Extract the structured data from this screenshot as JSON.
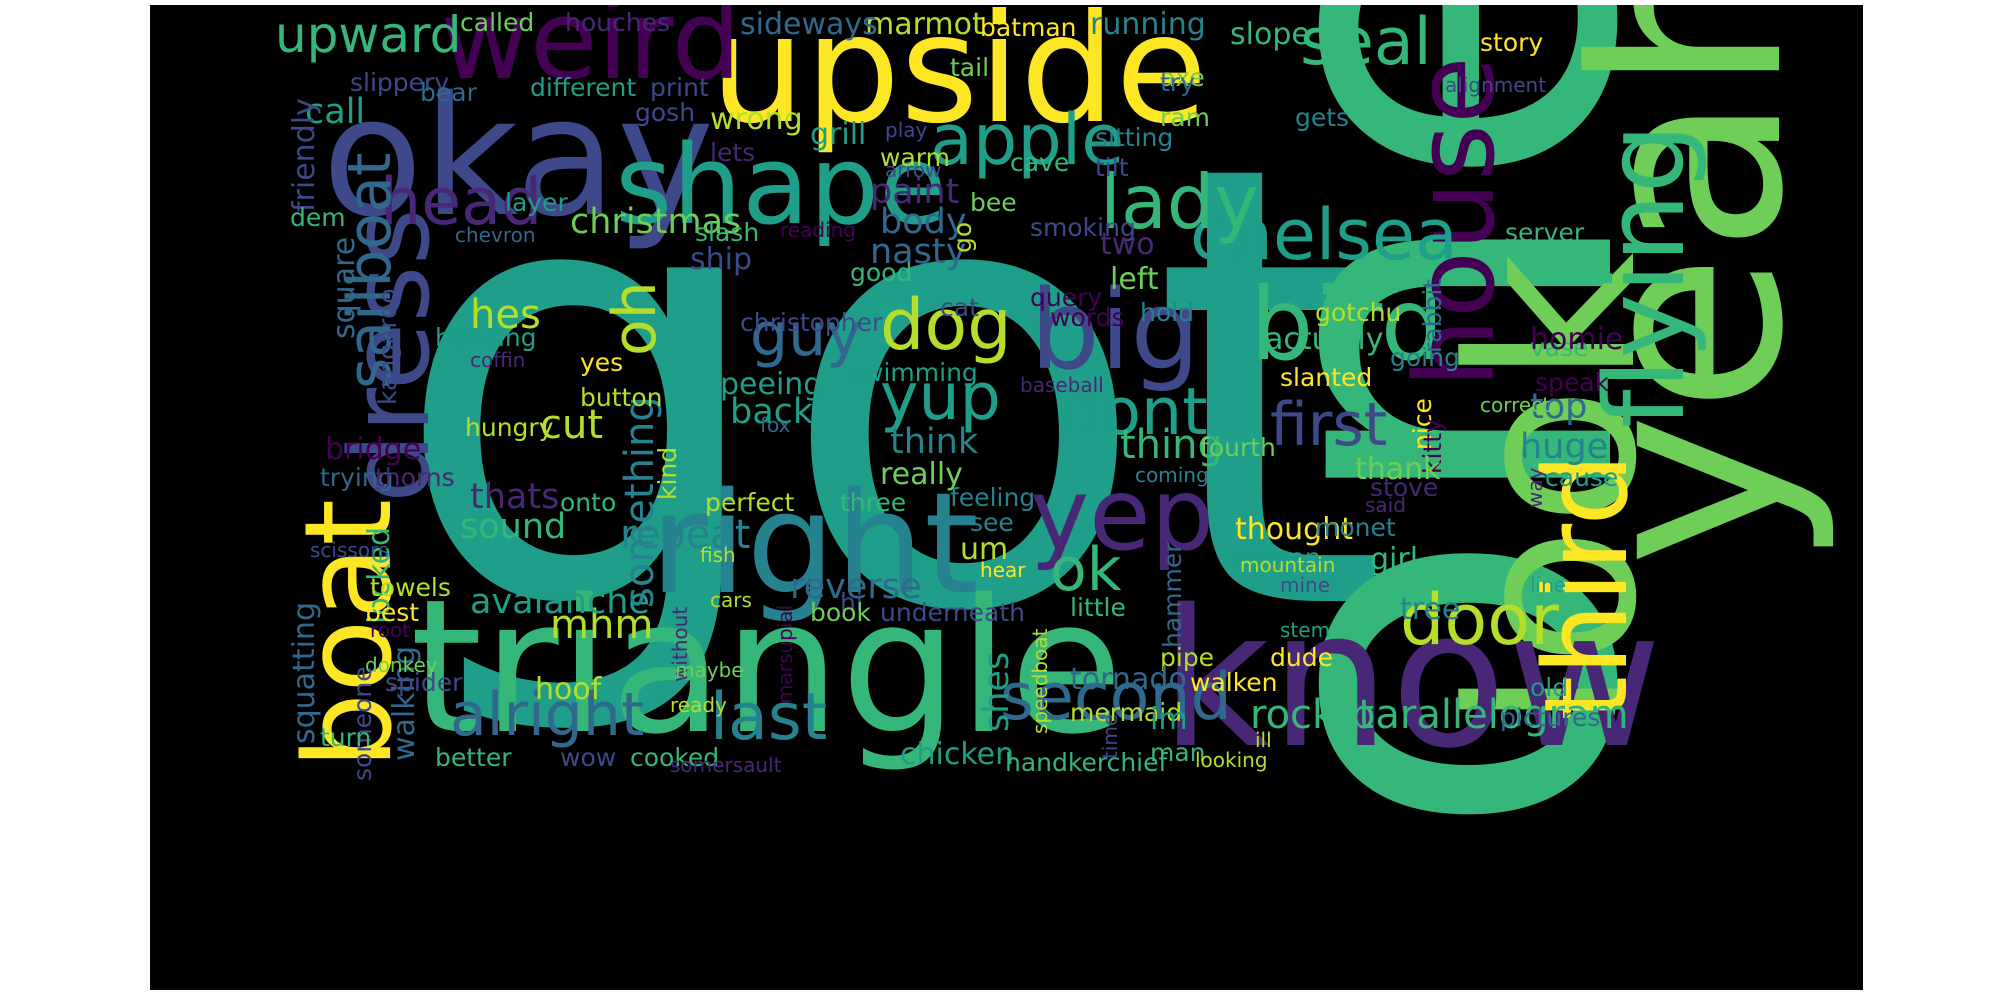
{
  "colors": {
    "background": "#000000",
    "page": "#ffffff",
    "palette": [
      "#440154",
      "#482777",
      "#3e4989",
      "#31688e",
      "#26828e",
      "#1f9e89",
      "#35b779",
      "#6ece58",
      "#b5de2b",
      "#fde725"
    ]
  },
  "words": [
    "got",
    "one",
    "triangle",
    "upside",
    "okay",
    "look",
    "yeah",
    "know",
    "right",
    "weird",
    "boat",
    "dress",
    "shape",
    "apple",
    "big",
    "bird",
    "yep",
    "house",
    "third",
    "flying",
    "chelsea",
    "lady",
    "seal",
    "head",
    "dog",
    "guy",
    "door",
    "dont",
    "yup",
    "second",
    "last",
    "alright",
    "first",
    "ok",
    "sailboat",
    "oh",
    "upward",
    "parallelogram",
    "hes",
    "mhm",
    "cut",
    "repeat",
    "avalanche",
    "rocket",
    "think",
    "thing",
    "top",
    "huge",
    "christmas",
    "body",
    "paint",
    "nasty",
    "sound",
    "thats",
    "something",
    "marmot",
    "running",
    "slope",
    "sideways",
    "houches",
    "called",
    "batman",
    "axe",
    "story",
    "alignment",
    "tail",
    "try",
    "ram",
    "print",
    "different",
    "slippery",
    "bear",
    "call",
    "gosh",
    "wrong",
    "grill",
    "sitting",
    "gets",
    "lets",
    "warm",
    "arrow",
    "cave",
    "tilt",
    "play",
    "friendly",
    "dem",
    "bee",
    "go",
    "layer",
    "reading",
    "slash",
    "smoking",
    "server",
    "two",
    "wont",
    "square",
    "chevron",
    "ship",
    "kangaroo",
    "good",
    "query",
    "left",
    "rabbit",
    "christopher",
    "cat",
    "words",
    "hold",
    "gotchu",
    "actually",
    "vase",
    "homie",
    "going",
    "handing",
    "coffin",
    "yes",
    "swimming",
    "baseball",
    "slanted",
    "speak",
    "peeing",
    "button",
    "back",
    "fox",
    "hungry",
    "bridge",
    "correct",
    "nice",
    "kitty",
    "cause",
    "trying",
    "thorns",
    "kind",
    "really",
    "coming",
    "fourth",
    "thank",
    "stove",
    "said",
    "way",
    "onto",
    "perfect",
    "three",
    "feeling",
    "locked",
    "see",
    "um",
    "thought",
    "person",
    "girl",
    "monet",
    "mountain",
    "mine",
    "scissors",
    "fish",
    "hear",
    "hammer",
    "reverse",
    "squatting",
    "towels",
    "best",
    "cars",
    "hi",
    "underneath",
    "marsupial",
    "book",
    "little",
    "tree",
    "line",
    "root",
    "walking",
    "donkey",
    "without",
    "maybe",
    "speedboat",
    "pipe",
    "stem",
    "spider",
    "hoof",
    "shes",
    "tornado",
    "walken",
    "dude",
    "old",
    "someone",
    "ready",
    "mermaid",
    "im",
    "pictures",
    "turn",
    "better",
    "wow",
    "cooked",
    "somersault",
    "chicken",
    "handkerchief",
    "time",
    "man",
    "ill",
    "looking"
  ]
}
